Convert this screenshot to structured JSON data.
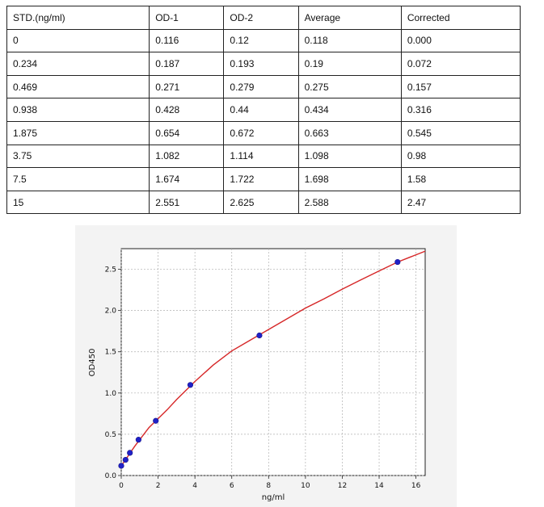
{
  "table": {
    "headers": [
      "STD.(ng/ml)",
      "OD-1",
      "OD-2",
      "Average",
      "Corrected"
    ],
    "rows": [
      [
        "0",
        "0.116",
        "0.12",
        "0.118",
        "0.000"
      ],
      [
        "0.234",
        "0.187",
        "0.193",
        "0.19",
        "0.072"
      ],
      [
        "0.469",
        "0.271",
        "0.279",
        "0.275",
        "0.157"
      ],
      [
        "0.938",
        "0.428",
        "0.44",
        "0.434",
        "0.316"
      ],
      [
        "1.875",
        "0.654",
        "0.672",
        "0.663",
        "0.545"
      ],
      [
        "3.75",
        "1.082",
        "1.114",
        "1.098",
        "0.98"
      ],
      [
        "7.5",
        "1.674",
        "1.722",
        "1.698",
        "1.58"
      ],
      [
        "15",
        "2.551",
        "2.625",
        "2.588",
        "2.47"
      ]
    ]
  },
  "chart_data": {
    "type": "scatter",
    "xlabel": "ng/ml",
    "ylabel": "OD450",
    "xlim": [
      0,
      16.5
    ],
    "ylim": [
      0,
      2.75
    ],
    "x_ticks": [
      0,
      2,
      4,
      6,
      8,
      10,
      12,
      14,
      16
    ],
    "y_ticks": [
      0.0,
      0.5,
      1.0,
      1.5,
      2.0,
      2.5
    ],
    "x_tick_labels": [
      "0",
      "2",
      "4",
      "6",
      "8",
      "10",
      "12",
      "14",
      "16"
    ],
    "y_tick_labels": [
      "0.0",
      "0.5",
      "1.0",
      "1.5",
      "2.0",
      "2.5"
    ],
    "grid": true,
    "points": [
      {
        "x": 0,
        "y": 0.118
      },
      {
        "x": 0.234,
        "y": 0.19
      },
      {
        "x": 0.469,
        "y": 0.275
      },
      {
        "x": 0.938,
        "y": 0.434
      },
      {
        "x": 1.875,
        "y": 0.663
      },
      {
        "x": 3.75,
        "y": 1.098
      },
      {
        "x": 7.5,
        "y": 1.698
      },
      {
        "x": 15,
        "y": 2.588
      }
    ],
    "fit_curve": {
      "x": [
        0,
        0.25,
        0.5,
        0.75,
        1,
        1.5,
        2,
        2.5,
        3,
        4,
        5,
        6,
        7,
        8,
        9,
        10,
        11,
        12,
        13,
        14,
        15,
        16.5
      ],
      "y": [
        0.118,
        0.196,
        0.28,
        0.36,
        0.434,
        0.58,
        0.69,
        0.8,
        0.92,
        1.14,
        1.34,
        1.51,
        1.64,
        1.77,
        1.9,
        2.03,
        2.14,
        2.26,
        2.37,
        2.48,
        2.588,
        2.72
      ]
    },
    "colors": {
      "point": "#2020c8",
      "curve": "#d62728",
      "grid": "#b0b0b0"
    }
  }
}
